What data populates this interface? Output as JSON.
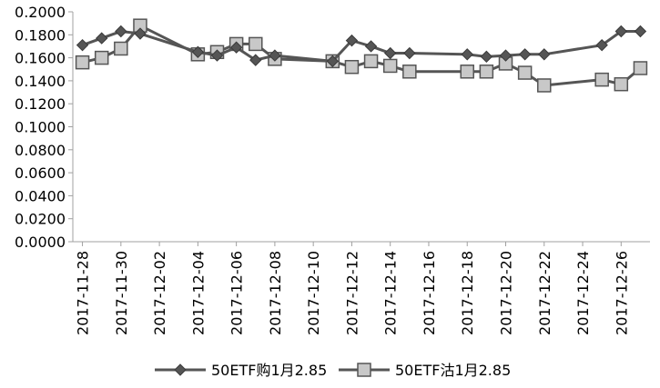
{
  "chart_data": {
    "type": "line",
    "title": "",
    "xlabel": "",
    "ylabel": "",
    "ylim": [
      0,
      0.2
    ],
    "y_ticks": [
      "0.0000",
      "0.0200",
      "0.0400",
      "0.0600",
      "0.0800",
      "0.1000",
      "0.1200",
      "0.1400",
      "0.1600",
      "0.1800",
      "0.2000"
    ],
    "x_range": [
      "2017-11-28",
      "2017-12-27"
    ],
    "x_ticks": [
      "2017-11-28",
      "2017-11-30",
      "2017-12-02",
      "2017-12-04",
      "2017-12-06",
      "2017-12-08",
      "2017-12-10",
      "2017-12-12",
      "2017-12-14",
      "2017-12-16",
      "2017-12-18",
      "2017-12-20",
      "2017-12-22",
      "2017-12-24",
      "2017-12-26"
    ],
    "grid": false,
    "legend_position": "bottom",
    "series": [
      {
        "name": "50ETF购1月2.85",
        "color": "#555555",
        "marker": "diamond",
        "points": [
          {
            "x": "2017-11-28",
            "y": 0.171
          },
          {
            "x": "2017-11-29",
            "y": 0.177
          },
          {
            "x": "2017-11-30",
            "y": 0.183
          },
          {
            "x": "2017-12-01",
            "y": 0.181
          },
          {
            "x": "2017-12-04",
            "y": 0.165
          },
          {
            "x": "2017-12-05",
            "y": 0.162
          },
          {
            "x": "2017-12-06",
            "y": 0.169
          },
          {
            "x": "2017-12-07",
            "y": 0.158
          },
          {
            "x": "2017-12-08",
            "y": 0.162
          },
          {
            "x": "2017-12-11",
            "y": 0.157
          },
          {
            "x": "2017-12-12",
            "y": 0.175
          },
          {
            "x": "2017-12-13",
            "y": 0.17
          },
          {
            "x": "2017-12-14",
            "y": 0.164
          },
          {
            "x": "2017-12-15",
            "y": 0.164
          },
          {
            "x": "2017-12-18",
            "y": 0.163
          },
          {
            "x": "2017-12-19",
            "y": 0.161
          },
          {
            "x": "2017-12-20",
            "y": 0.162
          },
          {
            "x": "2017-12-21",
            "y": 0.163
          },
          {
            "x": "2017-12-22",
            "y": 0.163
          },
          {
            "x": "2017-12-25",
            "y": 0.171
          },
          {
            "x": "2017-12-26",
            "y": 0.183
          },
          {
            "x": "2017-12-27",
            "y": 0.183
          }
        ]
      },
      {
        "name": "50ETF沽1月2.85",
        "color": "#c8c8c8",
        "line_color": "#555555",
        "marker": "square",
        "points": [
          {
            "x": "2017-11-28",
            "y": 0.156
          },
          {
            "x": "2017-11-29",
            "y": 0.16
          },
          {
            "x": "2017-11-30",
            "y": 0.168
          },
          {
            "x": "2017-12-01",
            "y": 0.188
          },
          {
            "x": "2017-12-04",
            "y": 0.163
          },
          {
            "x": "2017-12-05",
            "y": 0.165
          },
          {
            "x": "2017-12-06",
            "y": 0.172
          },
          {
            "x": "2017-12-07",
            "y": 0.172
          },
          {
            "x": "2017-12-08",
            "y": 0.159
          },
          {
            "x": "2017-12-11",
            "y": 0.157
          },
          {
            "x": "2017-12-12",
            "y": 0.152
          },
          {
            "x": "2017-12-13",
            "y": 0.157
          },
          {
            "x": "2017-12-14",
            "y": 0.153
          },
          {
            "x": "2017-12-15",
            "y": 0.148
          },
          {
            "x": "2017-12-18",
            "y": 0.148
          },
          {
            "x": "2017-12-19",
            "y": 0.148
          },
          {
            "x": "2017-12-20",
            "y": 0.155
          },
          {
            "x": "2017-12-21",
            "y": 0.147
          },
          {
            "x": "2017-12-22",
            "y": 0.136
          },
          {
            "x": "2017-12-25",
            "y": 0.141
          },
          {
            "x": "2017-12-26",
            "y": 0.137
          },
          {
            "x": "2017-12-27",
            "y": 0.151
          }
        ]
      }
    ]
  }
}
